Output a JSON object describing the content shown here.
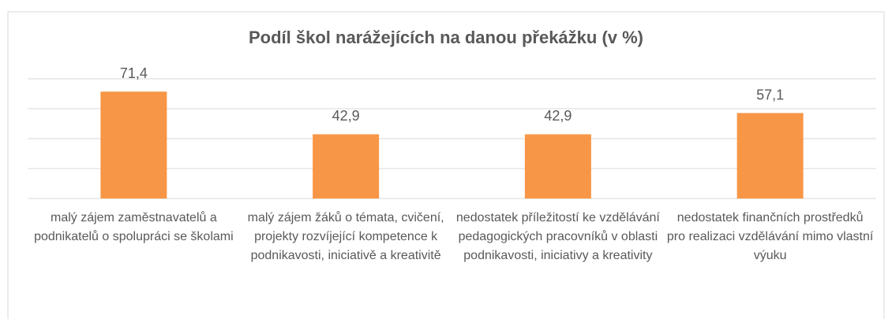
{
  "chart_data": {
    "type": "bar",
    "title": "Podíl škol narážejících na danou překážku (v %)",
    "categories": [
      "malý zájem zaměstnavatelů a podnikatelů o spolupráci se školami",
      "malý zájem žáků o témata, cvičení, projekty rozvíjející kompetence k podnikavosti, iniciativě a kreativitě",
      "nedostatek příležitostí ke vzdělávání pedagogických pracovníků v oblasti podnikavosti, iniciativy a kreativity",
      "nedostatek finančních prostředků pro realizaci vzdělávání mimo vlastní výuku"
    ],
    "values": [
      71.4,
      42.9,
      42.9,
      57.1
    ],
    "value_labels": [
      "71,4",
      "42,9",
      "42,9",
      "57,1"
    ],
    "color": "#f79646",
    "ylim": [
      0,
      80
    ],
    "yticks": [
      0,
      20,
      40,
      60,
      80
    ],
    "grid": true
  }
}
